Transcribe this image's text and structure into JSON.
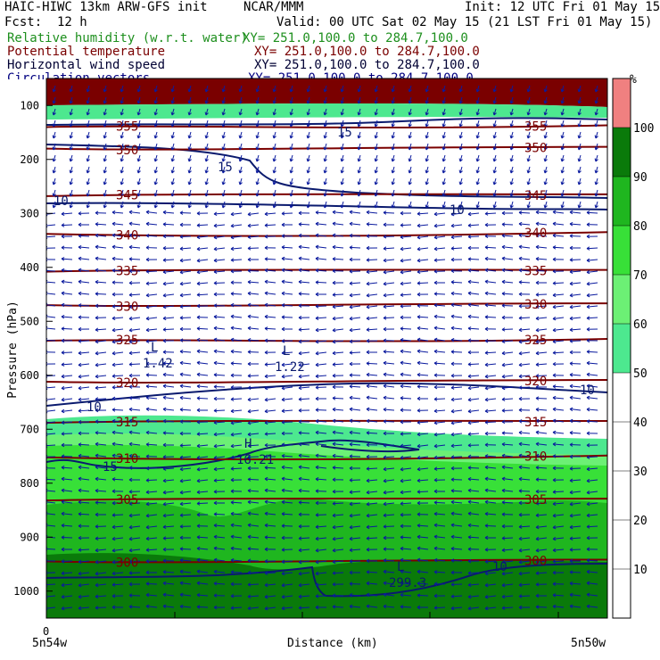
{
  "header": {
    "title": "HAIC-HIWC 13km ARW-GFS init",
    "org": "NCAR/MMM",
    "init": "Init: 12 UTC Fri 01 May 15",
    "fcst_label": "Fcst:",
    "fcst_value": "12 h",
    "valid": "Valid: 00 UTC Sat 02 May 15 (21 LST Fri 01 May 15)",
    "fields": [
      {
        "name": "Relative humidity (w.r.t. water)",
        "xy": "XY= 251.0,100.0 to 284.7,100.0",
        "color": "#1d8f1d"
      },
      {
        "name": "Potential temperature",
        "xy": "XY= 251.0,100.0 to 284.7,100.0",
        "color": "#7a0000"
      },
      {
        "name": "Horizontal wind speed",
        "xy": "XY= 251.0,100.0 to 284.7,100.0",
        "color": "#000033"
      },
      {
        "name": "Circulation vectors",
        "xy": "XY= 251.0,100.0 to 284.7,100.0",
        "color": "#000080"
      }
    ]
  },
  "chart_data": {
    "type": "heatmap",
    "description_fields": [
      "relative humidity (filled)",
      "potential temperature (contours)",
      "wind speed (contours)",
      "circulation vectors"
    ],
    "xlabel": "Distance (km)",
    "ylabel": "Pressure (hPa)",
    "x_start_label": "5n54w",
    "x_end_label": "5n50w",
    "x_zero_label": "0",
    "y_ticks": [
      100,
      200,
      300,
      400,
      500,
      600,
      700,
      800,
      900,
      1000
    ],
    "y_range": [
      50,
      1050
    ],
    "colorbar": {
      "unit": "%",
      "ticks": [
        10,
        20,
        30,
        40,
        50,
        60,
        70,
        80,
        90,
        100
      ],
      "levels": [
        {
          "from": 50,
          "to": 60,
          "color": "#4de88f"
        },
        {
          "from": 60,
          "to": 70,
          "color": "#6cf075"
        },
        {
          "from": 70,
          "to": 80,
          "color": "#38e038"
        },
        {
          "from": 80,
          "to": 90,
          "color": "#1fb61f"
        },
        {
          "from": 90,
          "to": 100,
          "color": "#0a7a0a"
        },
        {
          "from": 100,
          "to": 110,
          "color": "#f08080"
        }
      ]
    },
    "theta_contours": [
      {
        "label": "355",
        "p": 140
      },
      {
        "label": "350",
        "p": 180
      },
      {
        "label": "345",
        "p": 268
      },
      {
        "label": "340",
        "p": 338
      },
      {
        "label": "335",
        "p": 408
      },
      {
        "label": "330",
        "p": 470
      },
      {
        "label": "325",
        "p": 536
      },
      {
        "label": "320",
        "p": 612
      },
      {
        "label": "315",
        "p": 688
      },
      {
        "label": "310",
        "p": 752
      },
      {
        "label": "305",
        "p": 832
      },
      {
        "label": "300",
        "p": 945
      }
    ],
    "wind_labels": [
      "15",
      "15",
      "10",
      "10",
      "10",
      "10",
      "15",
      "10"
    ],
    "extrema": [
      {
        "kind": "L",
        "value": "1.42"
      },
      {
        "kind": "L",
        "value": "1.22"
      },
      {
        "kind": "H",
        "value": "16.21"
      },
      {
        "kind": "L",
        "value": "299.3"
      }
    ]
  }
}
